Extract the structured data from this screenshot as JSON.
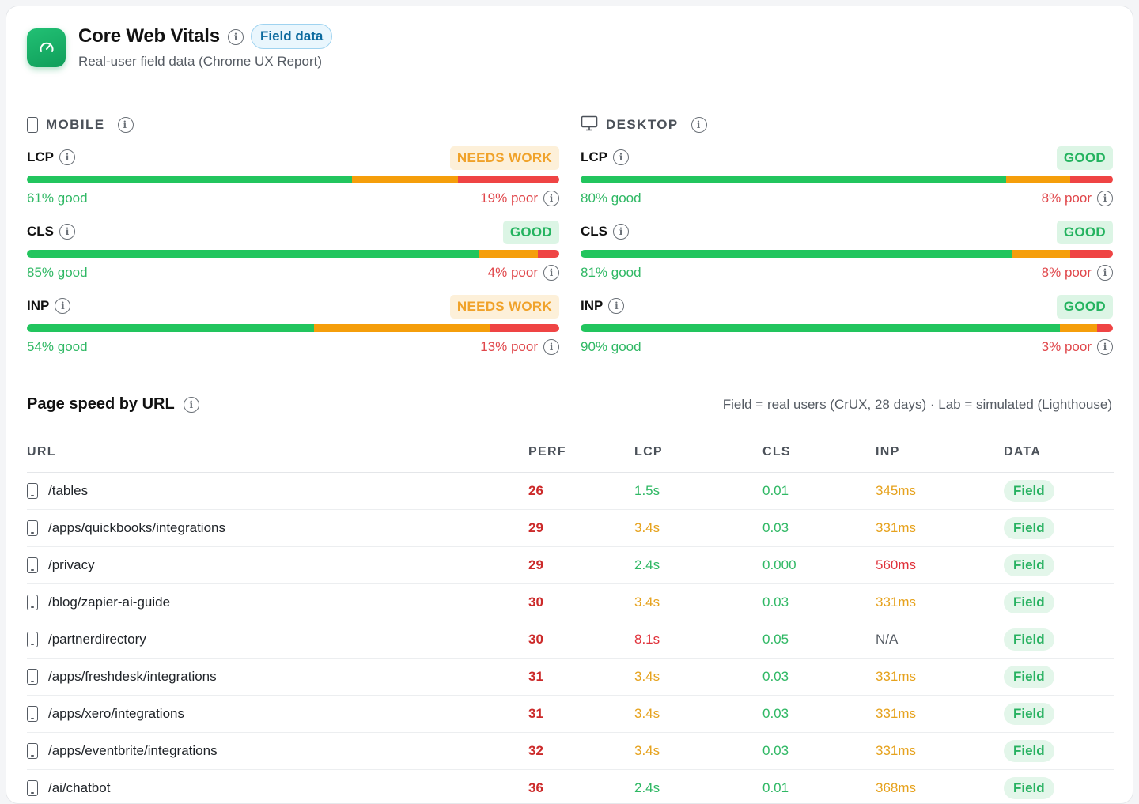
{
  "header": {
    "title": "Core Web Vitals",
    "pill": "Field data",
    "subtitle": "Real-user field data (Chrome UX Report)"
  },
  "colors": {
    "good": "#22c55e",
    "needs_work": "#f59e0b",
    "poor": "#ef4444",
    "accent": "#0f9e5a"
  },
  "mobile": {
    "label": "MOBILE",
    "metrics": [
      {
        "name": "LCP",
        "status": "NEEDS WORK",
        "good_pct": 61,
        "poor_pct": 19,
        "good_text": "61% good",
        "poor_text": "19% poor"
      },
      {
        "name": "CLS",
        "status": "GOOD",
        "good_pct": 85,
        "poor_pct": 4,
        "good_text": "85% good",
        "poor_text": "4% poor"
      },
      {
        "name": "INP",
        "status": "NEEDS WORK",
        "good_pct": 54,
        "poor_pct": 13,
        "good_text": "54% good",
        "poor_text": "13% poor"
      }
    ]
  },
  "desktop": {
    "label": "DESKTOP",
    "metrics": [
      {
        "name": "LCP",
        "status": "GOOD",
        "good_pct": 80,
        "poor_pct": 8,
        "good_text": "80% good",
        "poor_text": "8% poor"
      },
      {
        "name": "CLS",
        "status": "GOOD",
        "good_pct": 81,
        "poor_pct": 8,
        "good_text": "81% good",
        "poor_text": "8% poor"
      },
      {
        "name": "INP",
        "status": "GOOD",
        "good_pct": 90,
        "poor_pct": 3,
        "good_text": "90% good",
        "poor_text": "3% poor"
      }
    ]
  },
  "pagespeed": {
    "title": "Page speed by URL",
    "note": "Field = real users (CrUX, 28 days) · Lab = simulated (Lighthouse)",
    "columns": [
      "URL",
      "PERF",
      "LCP",
      "CLS",
      "INP",
      "DATA"
    ],
    "rows": [
      {
        "url": "/tables",
        "perf": "26",
        "lcp": "1.5s",
        "cls": "0.01",
        "inp": "345ms",
        "data": "Field"
      },
      {
        "url": "/apps/quickbooks/integrations",
        "perf": "29",
        "lcp": "3.4s",
        "cls": "0.03",
        "inp": "331ms",
        "data": "Field"
      },
      {
        "url": "/privacy",
        "perf": "29",
        "lcp": "2.4s",
        "cls": "0.000",
        "inp": "560ms",
        "data": "Field"
      },
      {
        "url": "/blog/zapier-ai-guide",
        "perf": "30",
        "lcp": "3.4s",
        "cls": "0.03",
        "inp": "331ms",
        "data": "Field"
      },
      {
        "url": "/partnerdirectory",
        "perf": "30",
        "lcp": "8.1s",
        "cls": "0.05",
        "inp": "N/A",
        "data": "Field"
      },
      {
        "url": "/apps/freshdesk/integrations",
        "perf": "31",
        "lcp": "3.4s",
        "cls": "0.03",
        "inp": "331ms",
        "data": "Field"
      },
      {
        "url": "/apps/xero/integrations",
        "perf": "31",
        "lcp": "3.4s",
        "cls": "0.03",
        "inp": "331ms",
        "data": "Field"
      },
      {
        "url": "/apps/eventbrite/integrations",
        "perf": "32",
        "lcp": "3.4s",
        "cls": "0.03",
        "inp": "331ms",
        "data": "Field"
      },
      {
        "url": "/ai/chatbot",
        "perf": "36",
        "lcp": "2.4s",
        "cls": "0.01",
        "inp": "368ms",
        "data": "Field"
      }
    ]
  }
}
